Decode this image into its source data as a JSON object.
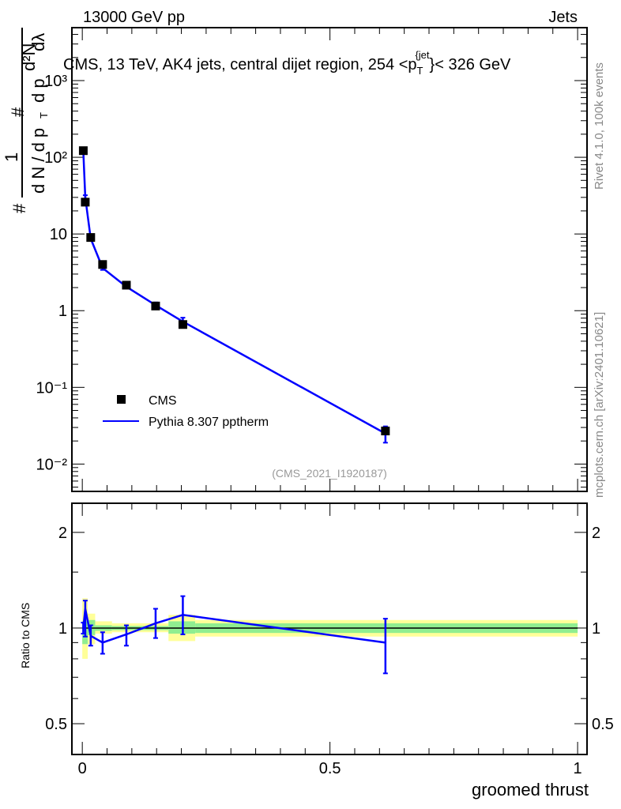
{
  "header": {
    "left": "13000 GeV pp",
    "right": "Jets"
  },
  "side_labels": {
    "top": "Rivet 4.1.0,  100k events",
    "bottom": "mcplots.cern.ch [arXiv:2401.10621]"
  },
  "colors": {
    "data": "#000000",
    "mc": "#0000ff",
    "band_inner": "#90ee90",
    "band_outer": "#ffff99"
  },
  "chart_data": [
    {
      "type": "scatter",
      "panel": "main",
      "title": "CMS, 13 TeV, AK4 jets, central dijet region, 254 < p_T^{jet} < 326 GeV",
      "title_parts": {
        "pre": "CMS, 13 TeV, AK4 jets, central dijet region, 254 <p",
        "sub": "T",
        "sup": "{jet",
        "post": "}< 326 GeV"
      },
      "ylabel": "1/(dN/dp_T) d²N/(dp_T dλ)",
      "ylabel_parts": {
        "hash": "#",
        "one": "1",
        "den": "d N / d p",
        "t": "T",
        "num": "d²N",
        "den2": "d p",
        "dl": "dλ"
      },
      "yscale": "log",
      "xlim": [
        -0.021,
        1.019
      ],
      "ylim": [
        0.0044,
        4900
      ],
      "yticks": [
        {
          "v": 1000,
          "label": "10³"
        },
        {
          "v": 100,
          "label": "10²"
        },
        {
          "v": 10,
          "label": "10"
        },
        {
          "v": 1,
          "label": "1"
        },
        {
          "v": 0.1,
          "label": "10⁻¹"
        },
        {
          "v": 0.01,
          "label": "10⁻²"
        }
      ],
      "legend": {
        "position": "lower-left",
        "entries": [
          "CMS",
          "Pythia 8.307 pptherm"
        ]
      },
      "annotation": "(CMS_2021_I1920187)",
      "series": [
        {
          "name": "CMS",
          "marker": "square",
          "x": [
            0.002,
            0.006,
            0.017,
            0.041,
            0.089,
            0.148,
            0.203,
            0.612
          ],
          "y": [
            122,
            26,
            9.0,
            4.0,
            2.15,
            1.15,
            0.66,
            0.027
          ]
        },
        {
          "name": "Pythia 8.307 pptherm",
          "line": true,
          "x": [
            0.002,
            0.006,
            0.017,
            0.041,
            0.089,
            0.148,
            0.203,
            0.612
          ],
          "y": [
            121,
            30,
            8.7,
            3.6,
            2.05,
            1.18,
            0.72,
            0.025
          ],
          "yerr_low": [
            112,
            28,
            8.4,
            3.4,
            1.95,
            1.08,
            0.63,
            0.019
          ],
          "yerr_high": [
            130,
            32,
            9.0,
            3.8,
            2.15,
            1.28,
            0.81,
            0.031
          ]
        }
      ]
    },
    {
      "type": "line",
      "panel": "ratio",
      "ylabel": "Ratio to CMS",
      "xlabel": "groomed thrust",
      "yscale": "log",
      "xlim": [
        -0.021,
        1.019
      ],
      "ylim": [
        0.4,
        2.47
      ],
      "yticks": [
        {
          "v": 2,
          "label": "2"
        },
        {
          "v": 1,
          "label": "1"
        },
        {
          "v": 0.5,
          "label": "0.5"
        }
      ],
      "xticks": [
        {
          "v": 0,
          "label": "0"
        },
        {
          "v": 0.5,
          "label": "0.5"
        },
        {
          "v": 1,
          "label": "1"
        }
      ],
      "bands": {
        "edges": [
          0,
          0.011,
          0.026,
          0.06,
          0.174,
          0.228,
          1
        ],
        "outer_low": [
          0.8,
          0.89,
          0.96,
          0.97,
          0.91,
          0.94
        ],
        "outer_high": [
          1.24,
          1.11,
          1.05,
          1.035,
          1.1,
          1.06
        ],
        "inner_low": [
          0.89,
          0.95,
          0.98,
          0.985,
          0.96,
          0.965
        ],
        "inner_high": [
          1.05,
          1.06,
          1.02,
          1.015,
          1.05,
          1.035
        ]
      },
      "series": [
        {
          "name": "Pythia 8.307 pptherm",
          "x": [
            0.002,
            0.006,
            0.017,
            0.041,
            0.089,
            0.148,
            0.203,
            0.612
          ],
          "y": [
            1.0,
            1.15,
            0.945,
            0.9,
            0.955,
            1.035,
            1.1,
            0.9
          ],
          "yerr_low": [
            0.96,
            0.94,
            0.88,
            0.83,
            0.88,
            0.93,
            0.955,
            0.72
          ],
          "yerr_high": [
            1.04,
            1.22,
            1.02,
            0.97,
            1.02,
            1.15,
            1.26,
            1.07
          ]
        }
      ]
    }
  ]
}
